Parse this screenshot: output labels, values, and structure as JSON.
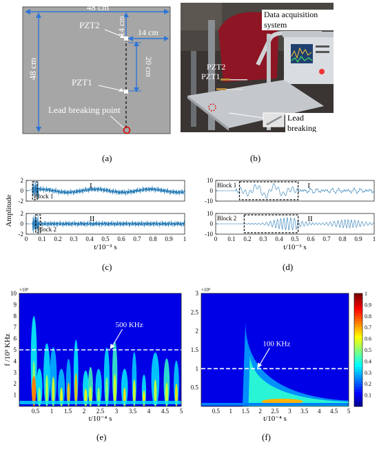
{
  "figure": {
    "panel_labels": [
      "(a)",
      "(b)",
      "(c)",
      "(d)",
      "(e)",
      "(f)"
    ]
  },
  "panel_a": {
    "width_label": "48 cm",
    "height_label": "48 cm",
    "top_gap_label": "14 cm",
    "side_gap_label": "14 cm",
    "sensor_spacing_label": "20 cm",
    "sensor1": "PZT1",
    "sensor2": "PZT2",
    "source": "Lead breaking point",
    "plate_color": "#a6a6a6",
    "arrow_color": "#2e75d6"
  },
  "panel_b": {
    "daq_label": "Data acquisition system",
    "sensor2": "PZT2",
    "sensor1": "PZT1",
    "lead_label": "Lead breaking"
  },
  "chart_data": [
    {
      "type": "line",
      "panel": "(c)",
      "ylabel": "Amplitude",
      "xlabel": "t/10⁻³ s",
      "xlim": [
        0,
        1
      ],
      "x_ticks": [
        "0",
        "0.1",
        "0.2",
        "0.3",
        "0.4",
        "0.5",
        "0.6",
        "0.7",
        "0.8",
        "0.9",
        "1"
      ],
      "subplots": [
        {
          "name": "I",
          "ylim": [
            -2,
            2
          ],
          "y_ticks": [
            "2",
            "0",
            "-2"
          ],
          "block": "Block 1",
          "block_range": [
            0.04,
            0.07
          ]
        },
        {
          "name": "II",
          "ylim": [
            -2,
            2
          ],
          "y_ticks": [
            "2",
            "0",
            "-2"
          ],
          "block": "Block 2",
          "block_range": [
            0.06,
            0.09
          ]
        }
      ],
      "line_color": "#1f77b4"
    },
    {
      "type": "line",
      "panel": "(d)",
      "xlabel": "",
      "xlim": [
        0,
        1
      ],
      "x_ticks": [
        "0",
        "0.1",
        "0.2",
        "0.3",
        "0.4",
        "0.5",
        "0.6",
        "0.7",
        "0.8",
        "0.9",
        "1"
      ],
      "subplots": [
        {
          "name": "I",
          "ylim": [
            -10,
            10
          ],
          "y_ticks": [
            "10",
            "0",
            "-10"
          ],
          "block": "Block 1",
          "block_range": [
            0.15,
            0.52
          ]
        },
        {
          "name": "II",
          "ylim": [
            -10,
            10
          ],
          "y_ticks": [
            "10",
            "0",
            "-10"
          ],
          "block": "Block 2",
          "block_range": [
            0.18,
            0.52
          ]
        }
      ],
      "line_color": "#1f77b4"
    },
    {
      "type": "heatmap",
      "panel": "(e)",
      "xlabel": "t/10⁻⁴ s",
      "ylabel": "f /10³ KHz",
      "y_exponent": "×10⁵",
      "xlim": [
        0,
        5
      ],
      "ylim": [
        0,
        10
      ],
      "x_ticks": [
        "0.5",
        "1",
        "1.5",
        "2",
        "2.5",
        "3",
        "3.5",
        "4",
        "4.5",
        "5"
      ],
      "y_ticks": [
        "10",
        "9",
        "8",
        "7",
        "6",
        "5",
        "4",
        "3",
        "2",
        "1"
      ],
      "annotation": "500 KHz",
      "threshold_y": 5
    },
    {
      "type": "heatmap",
      "panel": "(f)",
      "xlabel": "t/10⁻⁴ s",
      "y_exponent": "×10⁵",
      "xlim": [
        0,
        5
      ],
      "ylim": [
        0,
        3
      ],
      "x_ticks": [
        "0.5",
        "1",
        "1.5",
        "2",
        "2.5",
        "3",
        "3.5",
        "4",
        "4.5",
        "5"
      ],
      "y_ticks": [
        "3",
        "2.5",
        "2",
        "1.5",
        "1",
        "0.5"
      ],
      "annotation": "100 KHz",
      "threshold_y": 1,
      "colorbar_ticks": [
        "1",
        "0.9",
        "0.8",
        "0.7",
        "0.6",
        "0.5",
        "0.4",
        "0.3",
        "0.2",
        "0.1"
      ],
      "colorbar_range": [
        0,
        1
      ]
    }
  ]
}
